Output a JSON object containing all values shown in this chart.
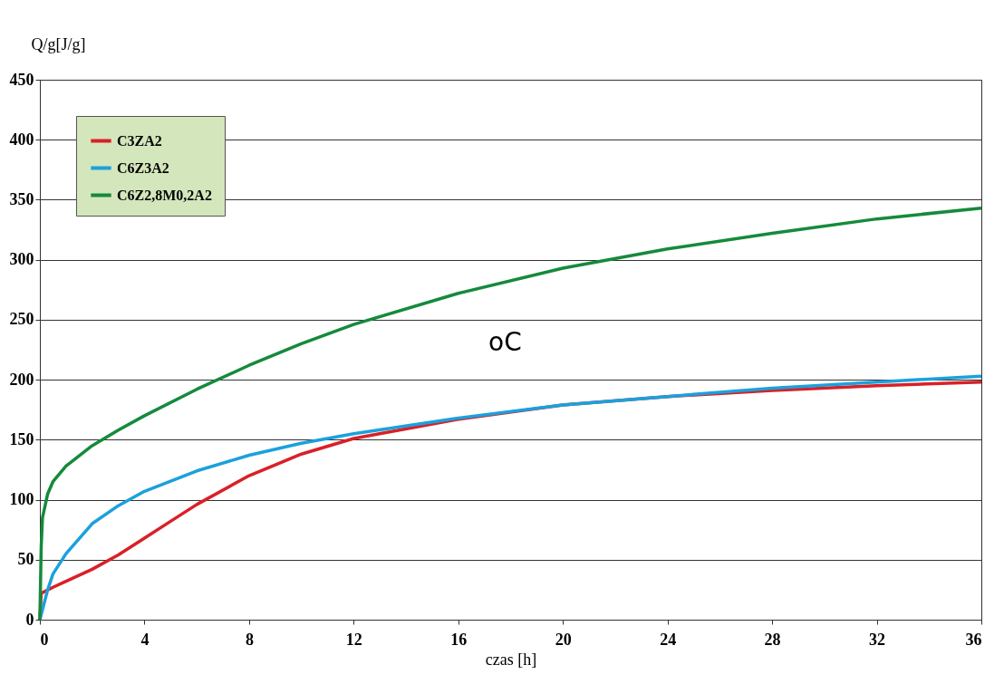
{
  "chart_data": {
    "type": "line",
    "xlabel": "czas [h]",
    "ylabel": "Q/g[J/g]",
    "xlim": [
      0,
      36
    ],
    "ylim": [
      0,
      450
    ],
    "xticks": [
      0,
      4,
      8,
      12,
      16,
      20,
      24,
      28,
      32,
      36
    ],
    "yticks": [
      0,
      50,
      100,
      150,
      200,
      250,
      300,
      350,
      400,
      450
    ],
    "grid": "y",
    "legend": "top left",
    "marker": "none",
    "line_style": "solid",
    "annotations": [
      "oC"
    ],
    "series": [
      {
        "name": "C3ZA2",
        "color": "#d92027",
        "x": [
          0,
          0.05,
          0.5,
          1,
          2,
          3,
          4,
          5,
          6,
          8,
          10,
          12,
          16,
          20,
          24,
          28,
          32,
          36
        ],
        "values": [
          0,
          22,
          27,
          32,
          42,
          54,
          68,
          82,
          96,
          120,
          138,
          151,
          167,
          179,
          186,
          191,
          195,
          198
        ]
      },
      {
        "name": "C6Z3A2",
        "color": "#1ba1dc",
        "x": [
          0,
          0.3,
          0.5,
          1,
          2,
          3,
          4,
          6,
          8,
          10,
          12,
          16,
          20,
          24,
          28,
          32,
          36
        ],
        "values": [
          0,
          25,
          38,
          55,
          80,
          95,
          107,
          124,
          137,
          147,
          155,
          168,
          179,
          186,
          193,
          198,
          203
        ]
      },
      {
        "name": "C6Z2,8M0,2A2",
        "color": "#158a3c",
        "x": [
          0,
          0.05,
          0.1,
          0.3,
          0.5,
          1,
          2,
          3,
          4,
          6,
          8,
          10,
          12,
          16,
          20,
          24,
          28,
          32,
          36
        ],
        "values": [
          0,
          60,
          85,
          105,
          115,
          128,
          145,
          158,
          170,
          192,
          212,
          230,
          246,
          272,
          293,
          309,
          322,
          334,
          343
        ]
      }
    ]
  }
}
